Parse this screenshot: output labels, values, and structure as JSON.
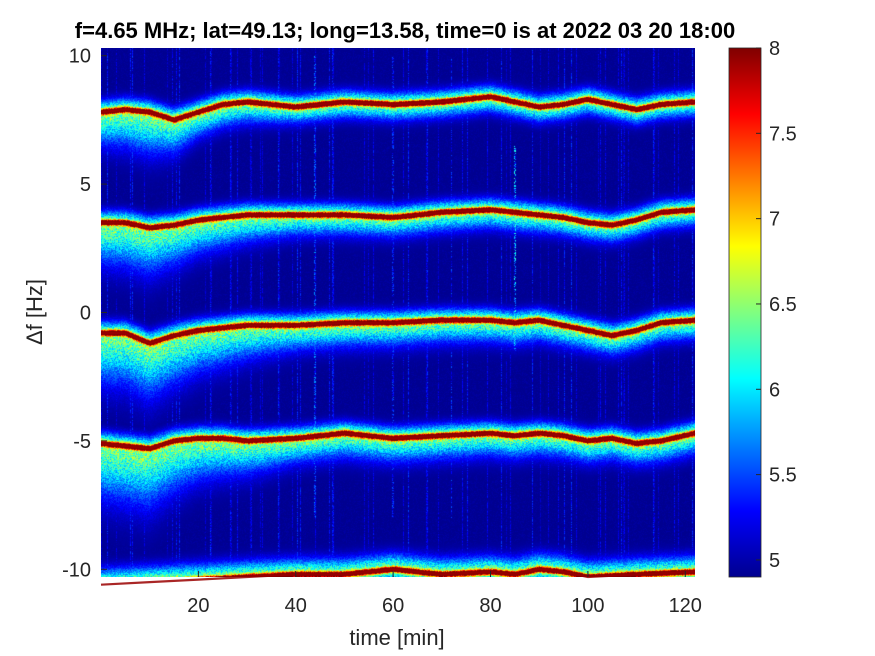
{
  "chart_data": {
    "type": "heatmap",
    "title": "f=4.65 MHz;  lat=49.13; long=13.58, time=0 is at 2022 03 20 18:00",
    "xlabel": "time [min]",
    "ylabel": "Δf [Hz]",
    "xlim": [
      0,
      122
    ],
    "ylim": [
      -10.3,
      10.3
    ],
    "x_ticks": [
      20,
      40,
      60,
      80,
      100,
      120
    ],
    "y_ticks": [
      -10,
      -5,
      0,
      5,
      10
    ],
    "colorbar": {
      "range": [
        4.9,
        8.0
      ],
      "ticks": [
        5,
        5.5,
        6,
        6.5,
        7,
        7.5,
        8
      ],
      "colormap": "jet"
    },
    "background_value": 4.95,
    "grid": false,
    "ridges": [
      {
        "name": "",
        "points": [
          [
            0,
            7.8
          ],
          [
            5,
            7.9
          ],
          [
            10,
            7.8
          ],
          [
            15,
            7.5
          ],
          [
            20,
            7.8
          ],
          [
            25,
            8.1
          ],
          [
            30,
            8.2
          ],
          [
            40,
            8.0
          ],
          [
            50,
            8.2
          ],
          [
            60,
            8.1
          ],
          [
            70,
            8.2
          ],
          [
            80,
            8.4
          ],
          [
            85,
            8.2
          ],
          [
            90,
            8.0
          ],
          [
            95,
            8.1
          ],
          [
            100,
            8.3
          ],
          [
            105,
            8.1
          ],
          [
            110,
            7.9
          ],
          [
            115,
            8.1
          ],
          [
            122,
            8.2
          ]
        ]
      },
      {
        "name": "",
        "points": [
          [
            0,
            3.5
          ],
          [
            5,
            3.5
          ],
          [
            10,
            3.3
          ],
          [
            15,
            3.4
          ],
          [
            20,
            3.6
          ],
          [
            25,
            3.7
          ],
          [
            30,
            3.8
          ],
          [
            40,
            3.8
          ],
          [
            50,
            3.8
          ],
          [
            60,
            3.7
          ],
          [
            70,
            3.9
          ],
          [
            80,
            4.0
          ],
          [
            85,
            3.9
          ],
          [
            90,
            3.8
          ],
          [
            95,
            3.7
          ],
          [
            100,
            3.5
          ],
          [
            105,
            3.4
          ],
          [
            110,
            3.6
          ],
          [
            115,
            3.9
          ],
          [
            122,
            4.0
          ]
        ]
      },
      {
        "name": "",
        "points": [
          [
            0,
            -0.8
          ],
          [
            5,
            -0.8
          ],
          [
            10,
            -1.2
          ],
          [
            15,
            -0.9
          ],
          [
            20,
            -0.7
          ],
          [
            25,
            -0.6
          ],
          [
            30,
            -0.5
          ],
          [
            40,
            -0.5
          ],
          [
            50,
            -0.4
          ],
          [
            60,
            -0.4
          ],
          [
            70,
            -0.3
          ],
          [
            80,
            -0.3
          ],
          [
            85,
            -0.4
          ],
          [
            90,
            -0.3
          ],
          [
            95,
            -0.5
          ],
          [
            100,
            -0.7
          ],
          [
            105,
            -0.9
          ],
          [
            110,
            -0.7
          ],
          [
            115,
            -0.4
          ],
          [
            122,
            -0.3
          ]
        ]
      },
      {
        "name": "",
        "points": [
          [
            0,
            -5.1
          ],
          [
            5,
            -5.2
          ],
          [
            10,
            -5.3
          ],
          [
            15,
            -5.0
          ],
          [
            20,
            -4.9
          ],
          [
            25,
            -4.9
          ],
          [
            30,
            -5.0
          ],
          [
            40,
            -4.9
          ],
          [
            50,
            -4.7
          ],
          [
            60,
            -4.9
          ],
          [
            70,
            -4.8
          ],
          [
            80,
            -4.7
          ],
          [
            85,
            -4.8
          ],
          [
            90,
            -4.7
          ],
          [
            95,
            -4.8
          ],
          [
            100,
            -5.0
          ],
          [
            105,
            -4.9
          ],
          [
            110,
            -5.1
          ],
          [
            115,
            -5.0
          ],
          [
            122,
            -4.7
          ]
        ]
      },
      {
        "name": "",
        "points": [
          [
            0,
            -10.6
          ],
          [
            10,
            -10.5
          ],
          [
            20,
            -10.4
          ],
          [
            30,
            -10.3
          ],
          [
            40,
            -10.2
          ],
          [
            50,
            -10.2
          ],
          [
            60,
            -10.0
          ],
          [
            70,
            -10.2
          ],
          [
            80,
            -10.1
          ],
          [
            85,
            -10.2
          ],
          [
            90,
            -10.0
          ],
          [
            95,
            -10.1
          ],
          [
            100,
            -10.3
          ],
          [
            110,
            -10.2
          ],
          [
            122,
            -10.1
          ]
        ]
      }
    ],
    "ridge_spread": [
      {
        "below": [
          [
            0,
            0.8
          ],
          [
            10,
            1.0
          ],
          [
            20,
            0.6
          ],
          [
            40,
            0.4
          ],
          [
            122,
            0.35
          ]
        ],
        "above": 0.3
      },
      {
        "below": [
          [
            0,
            1.0
          ],
          [
            10,
            1.1
          ],
          [
            20,
            0.8
          ],
          [
            40,
            0.5
          ],
          [
            122,
            0.4
          ]
        ],
        "above": 0.3
      },
      {
        "below": [
          [
            0,
            1.2
          ],
          [
            10,
            1.3
          ],
          [
            20,
            1.0
          ],
          [
            40,
            0.6
          ],
          [
            122,
            0.45
          ]
        ],
        "above": 0.3
      },
      {
        "below": [
          [
            0,
            1.3
          ],
          [
            10,
            1.4
          ],
          [
            20,
            1.0
          ],
          [
            40,
            0.6
          ],
          [
            122,
            0.5
          ]
        ],
        "above": 0.3
      },
      {
        "below": [
          [
            0,
            0.3
          ],
          [
            122,
            0.3
          ]
        ],
        "above": 0.4
      }
    ],
    "spike_events": [
      {
        "x": 85,
        "y_range": [
          -1.5,
          6.5
        ],
        "value": 6.3
      },
      {
        "x": 44,
        "y_range": [
          -8,
          10
        ],
        "value": 5.8
      },
      {
        "x": 60,
        "y_range": [
          -8,
          10
        ],
        "value": 5.6
      },
      {
        "x": 72,
        "y_range": [
          -8,
          10
        ],
        "value": 5.6
      }
    ]
  }
}
